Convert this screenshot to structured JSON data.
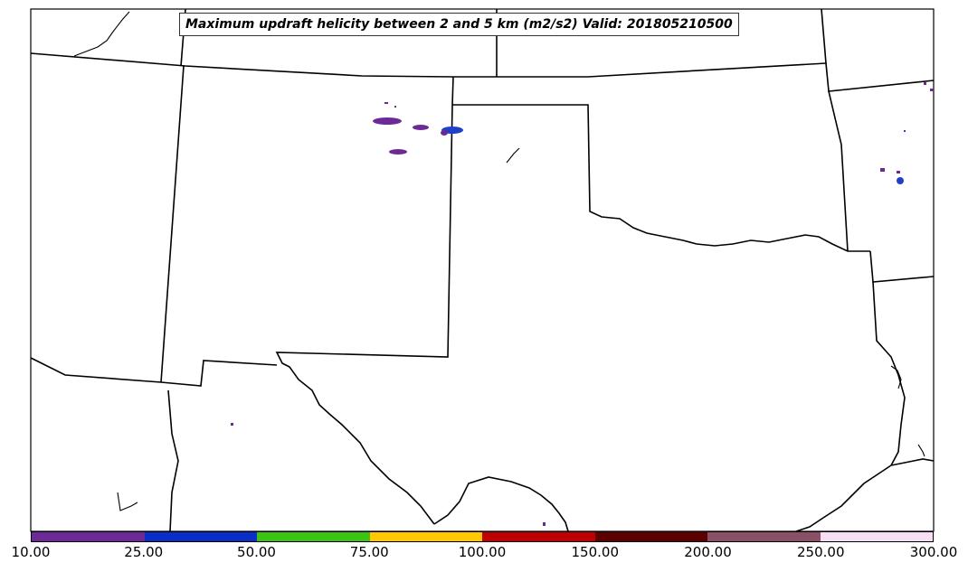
{
  "title": "Maximum updraft helicity between 2 and 5 km (m2/s2) Valid: 201805210500",
  "colorbar": {
    "ticks": [
      "10.00",
      "25.00",
      "50.00",
      "75.00",
      "100.00",
      "150.00",
      "200.00",
      "250.00",
      "300.00"
    ],
    "colors": [
      "#6d2a96",
      "#0a2fc8",
      "#3cc414",
      "#ffc800",
      "#c00000",
      "#5c0000",
      "#8a5068",
      "#f8def4"
    ]
  },
  "map": {
    "boundary_color": "#000000",
    "background": "#ffffff",
    "cell_color_purple": "#6d2a96",
    "cell_color_blue": "#2040c8"
  }
}
